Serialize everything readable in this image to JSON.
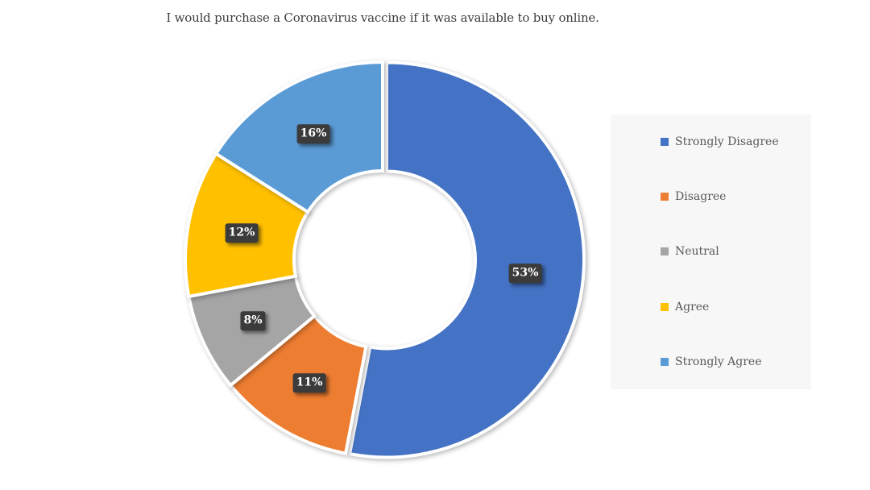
{
  "title": "I would purchase a Coronavirus vaccine if it was available to buy online.",
  "chart_data": {
    "type": "pie",
    "subtype": "donut",
    "title": "I would purchase a Coronavirus vaccine if it was available to buy online.",
    "categories": [
      "Strongly Disagree",
      "Disagree",
      "Neutral",
      "Agree",
      "Strongly Agree"
    ],
    "values": [
      53,
      11,
      8,
      12,
      16
    ],
    "value_unit": "%",
    "data_labels": [
      "53%",
      "11%",
      "8%",
      "12%",
      "16%"
    ],
    "colors": [
      "#4472c4",
      "#ed7d31",
      "#a5a5a5",
      "#ffc000",
      "#5b9bd5"
    ],
    "start_angle": 0,
    "direction": "clockwise",
    "donut_hole_ratio": 0.45,
    "exploded_slice": "Strongly Disagree",
    "legend_position": "right",
    "legend_background": "#f7f7f7",
    "legend_text_color": "#595959",
    "data_label_background": "#3b3b3b",
    "data_label_text_color": "#ffffff",
    "title_color": "#3d3d3d"
  }
}
